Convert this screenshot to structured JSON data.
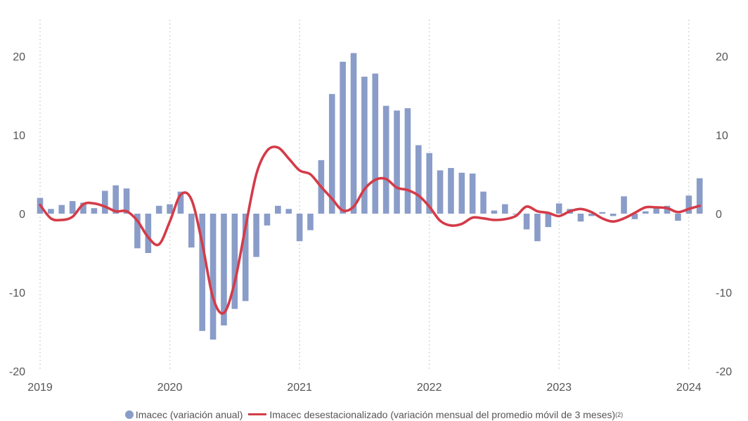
{
  "chart_data": {
    "type": "bar+line",
    "title": "",
    "ylim": [
      -20,
      20
    ],
    "yticks": [
      -20,
      -10,
      0,
      10,
      20
    ],
    "year_labels": [
      "2019",
      "2020",
      "2021",
      "2022",
      "2023",
      "2024"
    ],
    "grid": "vertical dotted lines at year starts",
    "legend_position": "bottom",
    "colors": {
      "bars": "#8a9cc8",
      "line": "#d43b48",
      "grid": "#c8c8c8"
    },
    "series": [
      {
        "name": "Imacec (variación anual)",
        "type": "bar",
        "start": "2019-01",
        "values": [
          2.0,
          0.6,
          1.1,
          1.6,
          1.4,
          0.7,
          2.9,
          3.6,
          3.2,
          -4.4,
          -5.0,
          1.0,
          1.2,
          2.8,
          -4.3,
          -14.9,
          -16.0,
          -14.2,
          -12.1,
          -11.1,
          -5.5,
          -1.5,
          1.0,
          0.6,
          -3.5,
          -2.1,
          6.8,
          15.2,
          19.3,
          20.4,
          17.4,
          17.8,
          13.7,
          13.1,
          13.4,
          8.7,
          7.7,
          5.5,
          5.8,
          5.2,
          5.1,
          2.8,
          0.4,
          1.2,
          0.0,
          -2.0,
          -3.5,
          -1.7,
          1.3,
          0.6,
          -1.0,
          -0.3,
          0.2,
          -0.3,
          2.2,
          -0.7,
          0.3,
          0.8,
          1.0,
          -0.9,
          2.3,
          4.5
        ]
      },
      {
        "name": "Imacec desestacionalizado (variación mensual del promedio móvil de 3 meses)",
        "name_superscript": "(2)",
        "type": "line",
        "start": "2019-01",
        "values": [
          1.1,
          -0.6,
          -0.8,
          -0.4,
          1.2,
          1.3,
          0.9,
          0.3,
          0.3,
          -0.9,
          -3.0,
          -3.9,
          -1.0,
          2.4,
          1.8,
          -3.8,
          -10.7,
          -12.6,
          -8.7,
          -1.7,
          5.0,
          8.0,
          8.4,
          7.0,
          5.5,
          5.0,
          3.4,
          1.9,
          0.4,
          0.9,
          3.1,
          4.3,
          4.4,
          3.3,
          3.0,
          2.3,
          0.9,
          -0.9,
          -1.5,
          -1.3,
          -0.5,
          -0.6,
          -0.8,
          -0.7,
          -0.3,
          0.9,
          0.3,
          0.1,
          -0.3,
          0.3,
          0.6,
          0.2,
          -0.6,
          -1.0,
          -0.6,
          0.1,
          0.8,
          0.8,
          0.7,
          0.2,
          0.6,
          1.0
        ]
      }
    ]
  },
  "legend": {
    "bar_label": "Imacec (variación anual)",
    "line_label": "Imacec desestacionalizado (variación mensual del promedio móvil de 3 meses)",
    "line_sup": "(2)"
  }
}
